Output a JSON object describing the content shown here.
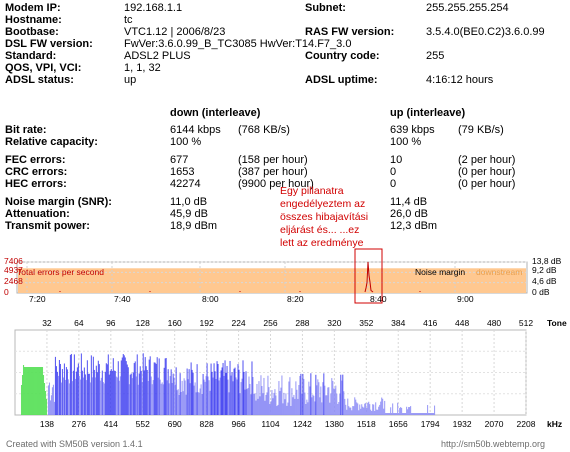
{
  "info_left": [
    {
      "label": "Modem IP:",
      "value": "192.168.1.1"
    },
    {
      "label": "Hostname:",
      "value": "tc"
    },
    {
      "label": "Bootbase:",
      "value": "VTC1.12 | 2006/8/23"
    },
    {
      "label": "DSL FW version:",
      "value": " FwVer:3.6.0.99_B_TC3085 HwVer:T14.F7_3.0"
    },
    {
      "label": "Standard:",
      "value": "ADSL2 PLUS"
    },
    {
      "label": "QOS, VPI, VCI:",
      "value": "1, 1, 32"
    },
    {
      "label": "ADSL status:",
      "value": "up"
    }
  ],
  "info_right": [
    {
      "label": "Subnet:",
      "value": "255.255.255.254"
    },
    {
      "label": "RAS FW version:",
      "value": "3.5.4.0(BE0.C2)3.6.0.99"
    },
    {
      "label": "Country code:",
      "value": "255"
    },
    {
      "label": "ADSL uptime:",
      "value": "4:16:12 hours"
    }
  ],
  "stats": {
    "down_header": "down (interleave)",
    "up_header": "up (interleave)",
    "rows": [
      {
        "label": "Bit rate:",
        "down": "6144 kbps",
        "down_extra": "(768 KB/s)",
        "up": "639 kbps",
        "up_extra": "(79 KB/s)"
      },
      {
        "label": "Relative capacity:",
        "down": "100 %",
        "down_extra": "",
        "up": "100 %",
        "up_extra": ""
      },
      {
        "label": "FEC errors:",
        "down": "677",
        "down_extra": "(158 per hour)",
        "up": "10",
        "up_extra": "(2 per hour)"
      },
      {
        "label": "CRC errors:",
        "down": "1653",
        "down_extra": "(387 per hour)",
        "up": "0",
        "up_extra": "(0 per hour)"
      },
      {
        "label": "HEC errors:",
        "down": "42274",
        "down_extra": "(9900 per hour)",
        "up": "0",
        "up_extra": "(0 per hour)"
      },
      {
        "label": "Noise margin (SNR):",
        "down": "11,0 dB",
        "down_extra": "",
        "up": "11,4 dB",
        "up_extra": ""
      },
      {
        "label": "Attenuation:",
        "down": "45,9 dB",
        "down_extra": "",
        "up": "26,0 dB",
        "up_extra": ""
      },
      {
        "label": "Transmit power:",
        "down": "18,9 dBm",
        "down_extra": "",
        "up": "12,3 dBm",
        "up_extra": ""
      }
    ]
  },
  "annotation": "Egy pillanatra engedélyeztem az összes hibajavítási eljárást és... ...ez lett az eredménye",
  "chart_data": [
    {
      "type": "area",
      "legend_left": "Total errors per second",
      "legend_noise": "Noise margin",
      "legend_downstream": "downstream",
      "y_left_ticks": [
        "7406",
        "4937",
        "2468",
        "0"
      ],
      "y_right_ticks": [
        "13,8 dB",
        "9,2 dB",
        "4,6 dB",
        "0 dB"
      ],
      "x_ticks": [
        "7:20",
        "7:40",
        "8:00",
        "8:20",
        "8:40",
        "9:00"
      ],
      "noise_margin_db": 11.0,
      "noise_margin_max_db": 13.8,
      "errors_max": 7406,
      "spike": {
        "time": "8:40",
        "value": 7406
      },
      "colors": {
        "area": "#ffc890",
        "errors": "#c00000",
        "noise_label": "#000000",
        "downstream_label": "#e8a050"
      }
    },
    {
      "type": "bar",
      "tone_label": "Tone",
      "khz_label": "kHz",
      "tone_ticks": [
        "32",
        "64",
        "96",
        "128",
        "160",
        "192",
        "224",
        "256",
        "288",
        "320",
        "352",
        "384",
        "416",
        "448",
        "480",
        "512"
      ],
      "khz_ticks": [
        "138",
        "276",
        "414",
        "552",
        "690",
        "828",
        "966",
        "1104",
        "1242",
        "1380",
        "1518",
        "1656",
        "1794",
        "1932",
        "2070",
        "2208"
      ],
      "upstream_tones": [
        6,
        31
      ],
      "downstream_tones": [
        33,
        420
      ],
      "colors": {
        "upstream": "#33dd33",
        "downstream": "#3333ee"
      }
    }
  ],
  "footer": {
    "left": "Created with SM50B version 1.4.1",
    "right": "http://sm50b.webtemp.org"
  }
}
